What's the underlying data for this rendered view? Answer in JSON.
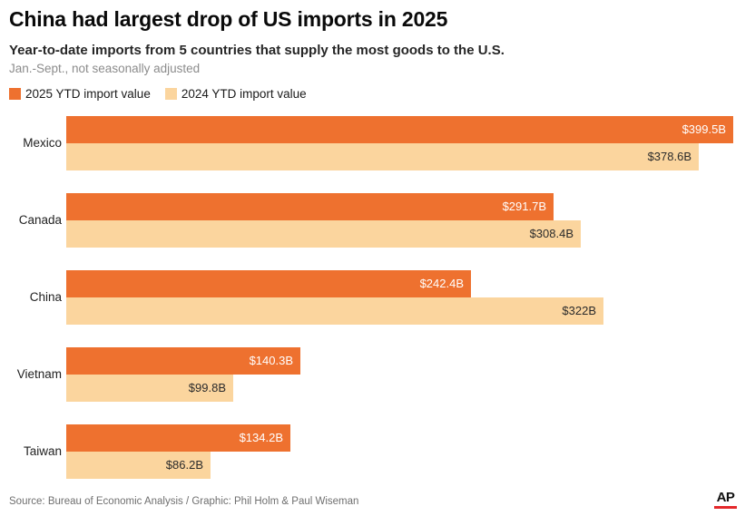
{
  "header": {
    "title": "China had largest drop of US imports in 2025",
    "subtitle": "Year-to-date imports from 5 countries that supply the most goods to the U.S.",
    "note": "Jan.-Sept., not seasonally adjusted"
  },
  "legend": {
    "items": [
      {
        "label": "2025 YTD import value",
        "color": "#EE712F"
      },
      {
        "label": "2024 YTD import value",
        "color": "#FBD59E"
      }
    ]
  },
  "chart_data": {
    "type": "bar",
    "orientation": "horizontal",
    "grouped": true,
    "title": "China had largest drop of US imports in 2025",
    "categories": [
      "Mexico",
      "Canada",
      "China",
      "Vietnam",
      "Taiwan"
    ],
    "series": [
      {
        "name": "2025 YTD import value",
        "color": "#EE712F",
        "label_color": "#FFFFFF",
        "values": [
          399.5,
          291.7,
          242.4,
          140.3,
          134.2
        ],
        "labels": [
          "$399.5B",
          "$291.7B",
          "$242.4B",
          "$140.3B",
          "$134.2B"
        ]
      },
      {
        "name": "2024 YTD import value",
        "color": "#FBD59E",
        "label_color": "#2B2B2B",
        "values": [
          378.6,
          308.4,
          322,
          99.8,
          86.2
        ],
        "labels": [
          "$378.6B",
          "$308.4B",
          "$322B",
          "$99.8B",
          "$86.2B"
        ]
      }
    ],
    "value_unit": "billions of U.S. dollars",
    "xlim": [
      0,
      399.5
    ],
    "gridlines": false,
    "axis_ticks_visible": false,
    "legend_position": "top",
    "value_labels": "inside-end"
  },
  "footer": {
    "source": "Source: Bureau of Economic Analysis / Graphic: Phil Holm & Paul Wiseman",
    "logo_text": "AP"
  },
  "colors": {
    "bar_2025": "#EE712F",
    "bar_2024": "#FBD59E",
    "ap_red": "#E4282B",
    "background": "#FFFFFF"
  }
}
